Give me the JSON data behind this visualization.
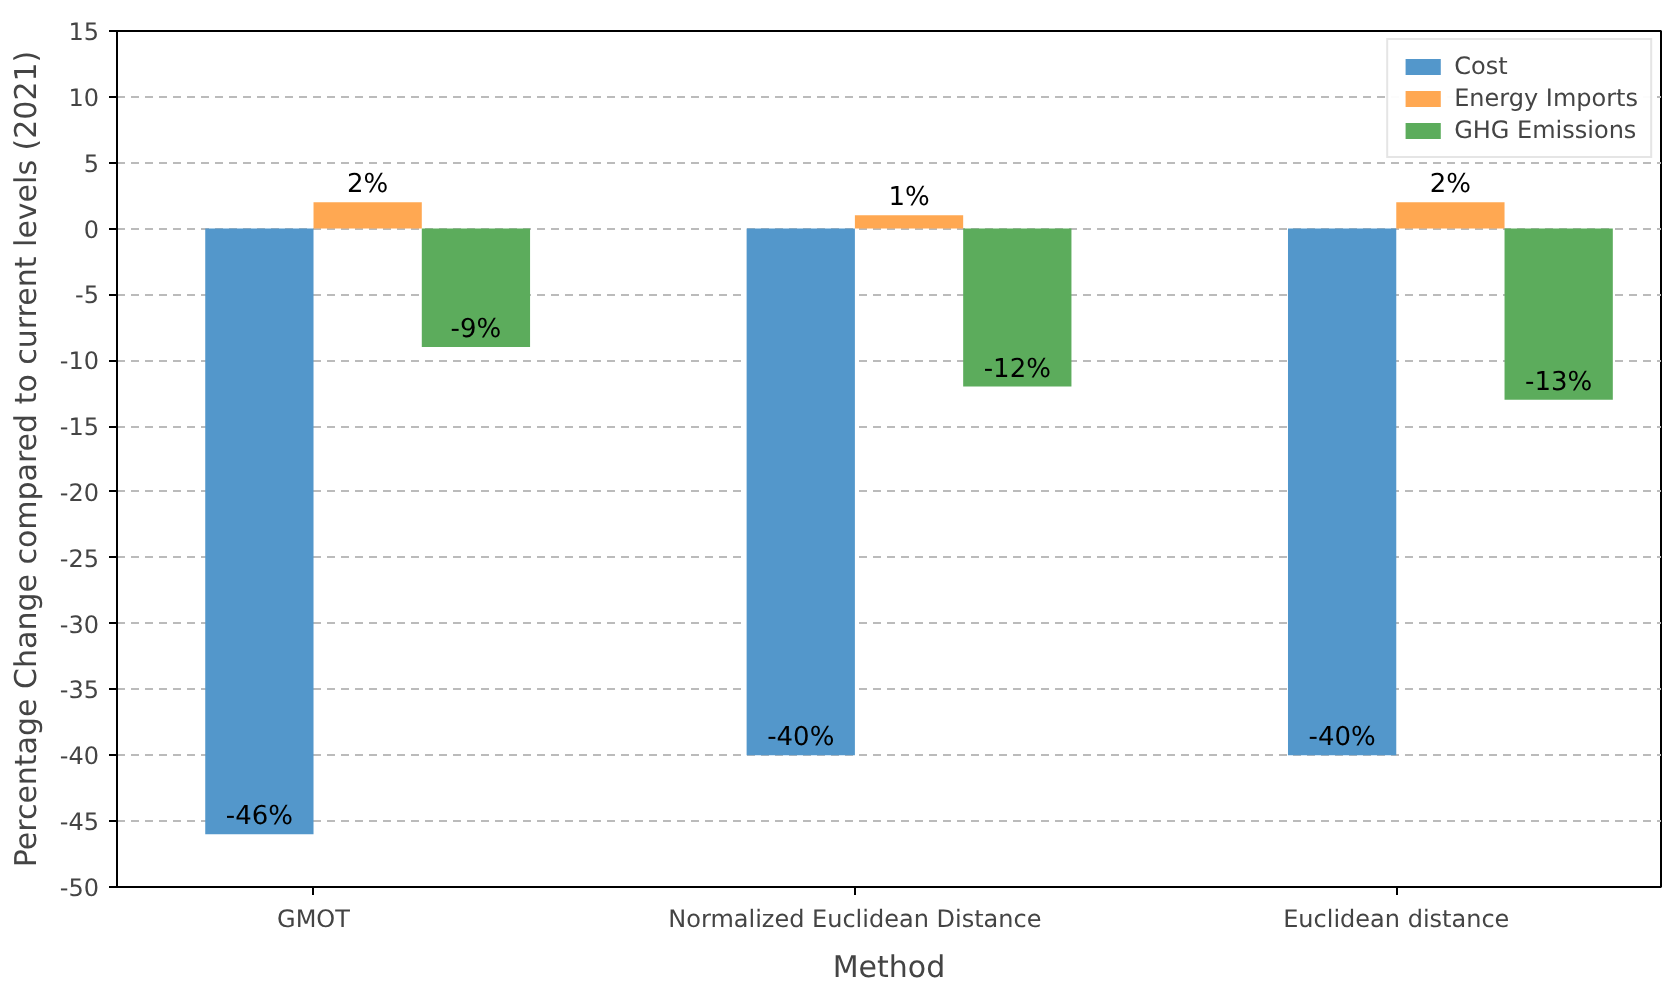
{
  "chart_data": {
    "type": "bar",
    "xlabel": "Method",
    "ylabel": "Percentage Change compared to current levels (2021)",
    "categories": [
      "GMOT",
      "Normalized Euclidean Distance",
      "Euclidean distance"
    ],
    "series": [
      {
        "name": "Cost",
        "color": "#5397cb",
        "values": [
          -46,
          -40,
          -40
        ],
        "value_labels": [
          "-46%",
          "-40%",
          "-40%"
        ]
      },
      {
        "name": "Energy Imports",
        "color": "#ffa852",
        "values": [
          2,
          1,
          2
        ],
        "value_labels": [
          "2%",
          "1%",
          "2%"
        ]
      },
      {
        "name": "GHG Emissions",
        "color": "#5cac5c",
        "values": [
          -9,
          -12,
          -13
        ],
        "value_labels": [
          "-9%",
          "-12%",
          "-13%"
        ]
      }
    ],
    "ylim": [
      -50,
      15
    ],
    "yticks": [
      -50,
      -45,
      -40,
      -35,
      -30,
      -25,
      -20,
      -15,
      -10,
      -5,
      0,
      5,
      10,
      15
    ],
    "grid": "y",
    "legend": "top right"
  }
}
